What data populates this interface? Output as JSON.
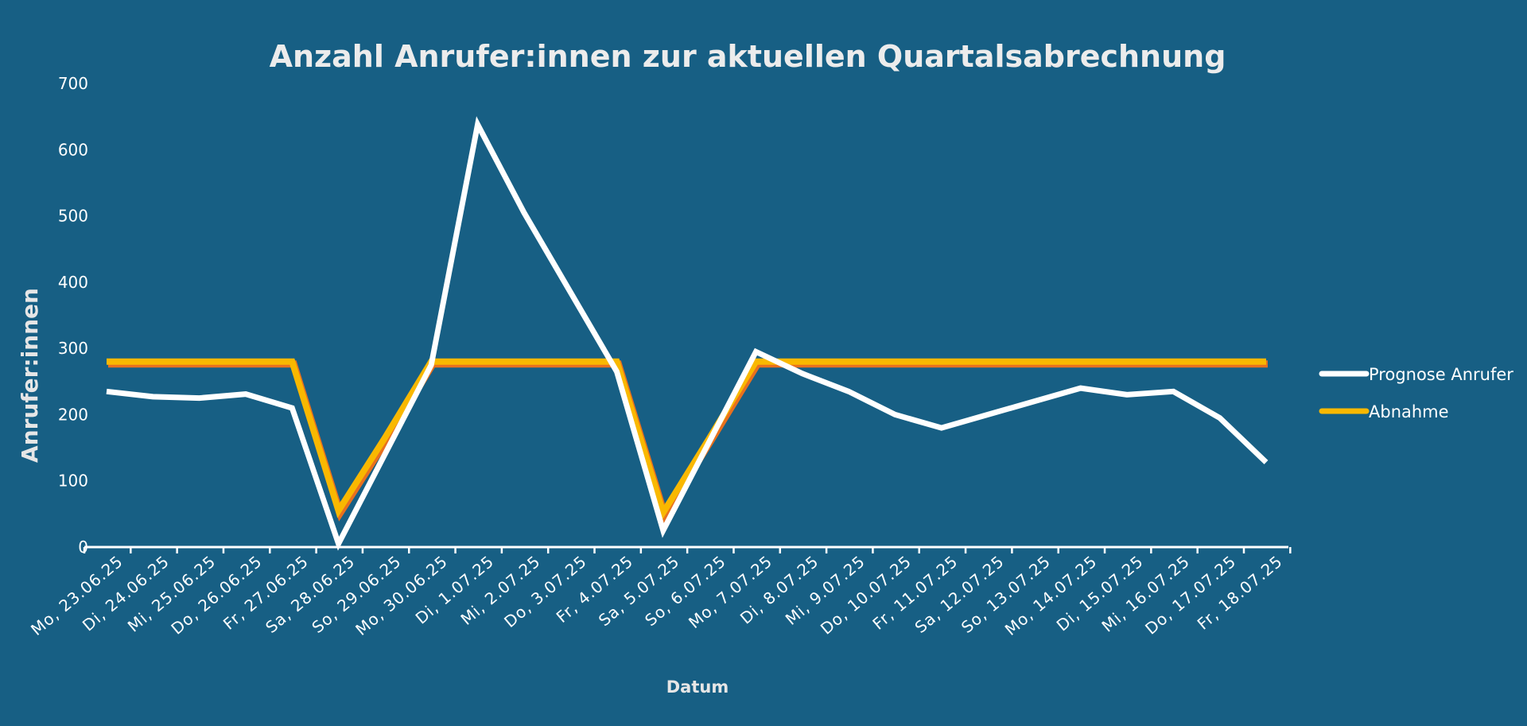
{
  "colors": {
    "background": "#175f84",
    "forecast_line": "#ffffff",
    "abnahme_line": "#f9b800",
    "abnahme_shadow": "#e8701e",
    "axis": "#ffffff"
  },
  "chart_data": {
    "type": "line",
    "title": "Anzahl Anrufer:innen zur aktuellen Quartalsabrechnung",
    "xlabel": "Datum",
    "ylabel": "Anrufer:innen",
    "ylim": [
      0,
      700
    ],
    "yticks": [
      "0",
      "100",
      "200",
      "300",
      "400",
      "500",
      "600",
      "700"
    ],
    "legend_position": "right",
    "categories": [
      "Mo, 23.06.25",
      "Di, 24.06.25",
      "Mi, 25.06.25",
      "Do, 26.06.25",
      "Fr, 27.06.25",
      "Sa, 28.06.25",
      "So, 29.06.25",
      "Mo, 30.06.25",
      "Di, 1.07.25",
      "Mi, 2.07.25",
      "Do, 3.07.25",
      "Fr, 4.07.25",
      "Sa, 5.07.25",
      "So, 6.07.25",
      "Mo, 7.07.25",
      "Di, 8.07.25",
      "Mi, 9.07.25",
      "Do, 10.07.25",
      "Fr, 11.07.25",
      "Sa, 12.07.25",
      "So, 13.07.25",
      "Mo, 14.07.25",
      "Di, 15.07.25",
      "Mi, 16.07.25",
      "Do, 17.07.25",
      "Fr, 18.07.25"
    ],
    "series": [
      {
        "name": "Prognose Anrufer",
        "values": [
          235,
          227,
          225,
          231,
          210,
          5,
          140,
          275,
          638,
          505,
          385,
          265,
          25,
          160,
          295,
          262,
          235,
          200,
          180,
          200,
          220,
          240,
          230,
          235,
          195,
          128
        ]
      },
      {
        "name": "Abnahme",
        "values": [
          280,
          280,
          280,
          280,
          280,
          55,
          165,
          280,
          280,
          280,
          280,
          280,
          52,
          165,
          280,
          280,
          280,
          280,
          280,
          280,
          280,
          280,
          280,
          280,
          280,
          280
        ]
      }
    ]
  }
}
